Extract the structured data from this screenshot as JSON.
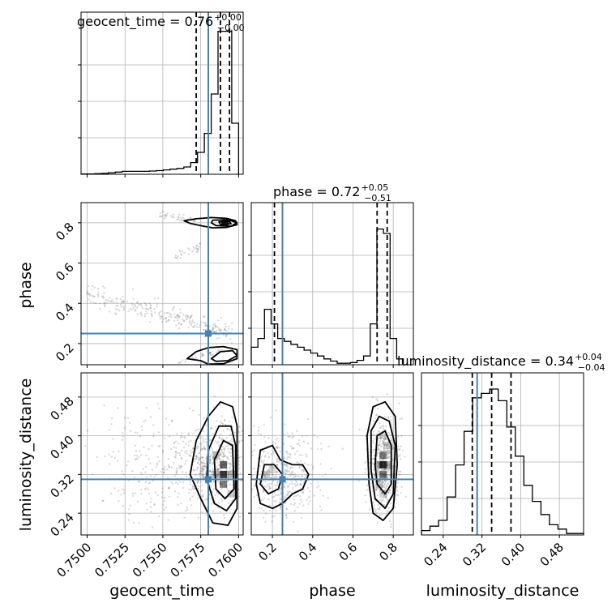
{
  "chart_data": {
    "type": "corner",
    "colors": {
      "truth": "#4682b4",
      "line": "#000000",
      "grid": "#b0b0b0",
      "scatter": "#555555"
    },
    "truths": {
      "geocent_time": 0.758,
      "phase": 0.25,
      "luminosity_distance": 0.31
    },
    "params": [
      {
        "key": "geocent_time",
        "label": "geocent_time",
        "title_prefix": "geocent_time = 0.76",
        "plus": "+0.00",
        "minus": "−0.00",
        "range": [
          0.7496,
          0.7603
        ],
        "ticks": [
          0.75,
          0.7525,
          0.755,
          0.7575,
          0.76
        ],
        "tick_labels": [
          "0.7500",
          "0.7525",
          "0.7550",
          "0.7575",
          "0.7600"
        ],
        "quantiles": [
          0.7572,
          0.7588,
          0.7594
        ]
      },
      {
        "key": "phase",
        "label": "phase",
        "title_prefix": "phase = 0.72",
        "plus": "+0.05",
        "minus": "−0.51",
        "range": [
          0.095,
          0.9
        ],
        "ticks": [
          0.2,
          0.4,
          0.6,
          0.8
        ],
        "tick_labels": [
          "0.2",
          "0.4",
          "0.6",
          "0.8"
        ],
        "quantiles": [
          0.21,
          0.72,
          0.77
        ]
      },
      {
        "key": "luminosity_distance",
        "label": "luminosity_distance",
        "title_prefix": "luminosity_distance = 0.34",
        "plus": "+0.04",
        "minus": "−0.04",
        "range": [
          0.195,
          0.53
        ],
        "ticks": [
          0.24,
          0.32,
          0.4,
          0.48
        ],
        "tick_labels": [
          "0.24",
          "0.32",
          "0.40",
          "0.48"
        ],
        "quantiles": [
          0.3,
          0.34,
          0.38
        ]
      }
    ],
    "hist": {
      "geocent_time": {
        "edges_start": 0.7496,
        "edges_end": 0.76,
        "density": [
          0.002,
          0.002,
          0.004,
          0.006,
          0.01,
          0.015,
          0.02,
          0.02,
          0.02,
          0.02,
          0.022,
          0.025,
          0.03,
          0.035,
          0.04,
          0.05,
          0.08,
          0.15,
          0.28,
          0.55,
          0.98,
          0.98,
          0.35
        ]
      },
      "phase": {
        "edges_start": 0.095,
        "edges_end": 0.85,
        "density": [
          0.12,
          0.18,
          0.38,
          0.28,
          0.18,
          0.16,
          0.14,
          0.12,
          0.1,
          0.08,
          0.06,
          0.04,
          0.025,
          0.01,
          0.01,
          0.015,
          0.03,
          0.06,
          0.28,
          0.93,
          0.9,
          0.18,
          0.04
        ]
      },
      "luminosity_distance": {
        "edges_start": 0.195,
        "edges_end": 0.53,
        "density": [
          0.03,
          0.06,
          0.1,
          0.26,
          0.48,
          0.71,
          0.94,
          0.97,
          1.0,
          0.92,
          0.74,
          0.54,
          0.34,
          0.23,
          0.14,
          0.07,
          0.04,
          0.01,
          0.01
        ]
      }
    },
    "hist_ylim": [
      0,
      1.0
    ],
    "contours": {
      "phase_vs_geocent_time": [
        {
          "level": "outer",
          "points": [
            [
              0.7564,
              0.81
            ],
            [
              0.7572,
              0.82
            ],
            [
              0.7582,
              0.826
            ],
            [
              0.7592,
              0.822
            ],
            [
              0.7598,
              0.81
            ],
            [
              0.7599,
              0.79
            ],
            [
              0.7592,
              0.777
            ],
            [
              0.7583,
              0.775
            ],
            [
              0.7576,
              0.784
            ],
            [
              0.7568,
              0.797
            ]
          ]
        },
        {
          "level": "mid",
          "points": [
            [
              0.7583,
              0.813
            ],
            [
              0.7593,
              0.815
            ],
            [
              0.7599,
              0.8
            ],
            [
              0.7595,
              0.783
            ],
            [
              0.7585,
              0.786
            ],
            [
              0.7582,
              0.8
            ]
          ]
        },
        {
          "level": "inner",
          "points": [
            [
              0.7587,
              0.805
            ],
            [
              0.7594,
              0.806
            ],
            [
              0.7595,
              0.795
            ],
            [
              0.7588,
              0.792
            ]
          ]
        },
        {
          "level": "outer",
          "points": [
            [
              0.7566,
              0.125
            ],
            [
              0.7572,
              0.16
            ],
            [
              0.758,
              0.18
            ],
            [
              0.759,
              0.185
            ],
            [
              0.7599,
              0.17
            ],
            [
              0.7599,
              0.125
            ],
            [
              0.759,
              0.1
            ],
            [
              0.758,
              0.098
            ],
            [
              0.7575,
              0.115
            ]
          ]
        },
        {
          "level": "mid",
          "points": [
            [
              0.7582,
              0.125
            ],
            [
              0.7588,
              0.16
            ],
            [
              0.7596,
              0.165
            ],
            [
              0.7599,
              0.14
            ],
            [
              0.7593,
              0.115
            ],
            [
              0.7585,
              0.112
            ]
          ]
        }
      ],
      "ld_vs_geocent_time": [
        {
          "level": "outer",
          "points": [
            [
              0.7572,
              0.39
            ],
            [
              0.758,
              0.44
            ],
            [
              0.7588,
              0.47
            ],
            [
              0.7596,
              0.46
            ],
            [
              0.7599,
              0.42
            ],
            [
              0.7599,
              0.25
            ],
            [
              0.7593,
              0.215
            ],
            [
              0.7583,
              0.22
            ],
            [
              0.7575,
              0.27
            ],
            [
              0.7568,
              0.32
            ]
          ]
        },
        {
          "level": "mid",
          "points": [
            [
              0.758,
              0.37
            ],
            [
              0.7587,
              0.42
            ],
            [
              0.7595,
              0.42
            ],
            [
              0.7598,
              0.38
            ],
            [
              0.7598,
              0.27
            ],
            [
              0.7592,
              0.245
            ],
            [
              0.7584,
              0.26
            ],
            [
              0.7579,
              0.31
            ]
          ]
        },
        {
          "level": "inner",
          "points": [
            [
              0.7584,
              0.35
            ],
            [
              0.759,
              0.39
            ],
            [
              0.7596,
              0.38
            ],
            [
              0.7597,
              0.29
            ],
            [
              0.7591,
              0.27
            ],
            [
              0.7585,
              0.29
            ]
          ]
        }
      ],
      "ld_vs_phase": [
        {
          "level": "outer",
          "points": [
            [
              0.68,
              0.3
            ],
            [
              0.67,
              0.4
            ],
            [
              0.7,
              0.46
            ],
            [
              0.76,
              0.47
            ],
            [
              0.81,
              0.44
            ],
            [
              0.82,
              0.34
            ],
            [
              0.8,
              0.25
            ],
            [
              0.75,
              0.225
            ],
            [
              0.7,
              0.24
            ]
          ]
        },
        {
          "level": "mid",
          "points": [
            [
              0.69,
              0.33
            ],
            [
              0.69,
              0.41
            ],
            [
              0.73,
              0.44
            ],
            [
              0.78,
              0.43
            ],
            [
              0.81,
              0.38
            ],
            [
              0.8,
              0.28
            ],
            [
              0.76,
              0.25
            ],
            [
              0.71,
              0.27
            ]
          ]
        },
        {
          "level": "inner",
          "points": [
            [
              0.71,
              0.34
            ],
            [
              0.72,
              0.4
            ],
            [
              0.76,
              0.41
            ],
            [
              0.79,
              0.38
            ],
            [
              0.79,
              0.3
            ],
            [
              0.76,
              0.28
            ],
            [
              0.72,
              0.3
            ]
          ]
        },
        {
          "level": "outer",
          "points": [
            [
              0.12,
              0.3
            ],
            [
              0.14,
              0.37
            ],
            [
              0.2,
              0.38
            ],
            [
              0.24,
              0.35
            ],
            [
              0.3,
              0.34
            ],
            [
              0.35,
              0.34
            ],
            [
              0.38,
              0.32
            ],
            [
              0.35,
              0.29
            ],
            [
              0.3,
              0.28
            ],
            [
              0.25,
              0.26
            ],
            [
              0.2,
              0.25
            ],
            [
              0.14,
              0.26
            ]
          ]
        },
        {
          "level": "mid",
          "points": [
            [
              0.14,
              0.3
            ],
            [
              0.16,
              0.34
            ],
            [
              0.21,
              0.34
            ],
            [
              0.25,
              0.32
            ],
            [
              0.23,
              0.29
            ],
            [
              0.18,
              0.28
            ]
          ]
        }
      ]
    },
    "density_cells": {
      "phase_vs_geocent_time": [
        [
          0.7591,
          0.8,
          1
        ]
      ],
      "ld_vs_geocent_time": [
        [
          0.759,
          0.32,
          0.9
        ],
        [
          0.759,
          0.34,
          0.7
        ],
        [
          0.759,
          0.3,
          0.6
        ],
        [
          0.7585,
          0.32,
          0.35
        ],
        [
          0.7595,
          0.32,
          0.35
        ],
        [
          0.7585,
          0.36,
          0.25
        ],
        [
          0.7595,
          0.28,
          0.25
        ]
      ],
      "ld_vs_phase": [
        [
          0.75,
          0.34,
          0.9
        ],
        [
          0.75,
          0.32,
          0.6
        ],
        [
          0.75,
          0.36,
          0.55
        ],
        [
          0.73,
          0.34,
          0.4
        ],
        [
          0.77,
          0.34,
          0.35
        ],
        [
          0.73,
          0.3,
          0.25
        ],
        [
          0.77,
          0.38,
          0.25
        ],
        [
          0.75,
          0.4,
          0.2
        ],
        [
          0.75,
          0.28,
          0.2
        ],
        [
          0.17,
          0.32,
          0.25
        ],
        [
          0.2,
          0.33,
          0.15
        ]
      ]
    },
    "scatter_regions": {
      "phase_vs_geocent_time": [
        {
          "kind": "band",
          "x": [
            0.75,
            0.7596
          ],
          "y": [
            0.45,
            0.25
          ],
          "spread": 0.025,
          "count": 260
        },
        {
          "kind": "band",
          "x": [
            0.7548,
            0.7572
          ],
          "y": [
            0.84,
            0.81
          ],
          "spread": 0.008,
          "count": 40
        },
        {
          "kind": "band",
          "x": [
            0.7558,
            0.7575
          ],
          "y": [
            0.64,
            0.68
          ],
          "spread": 0.01,
          "count": 30
        },
        {
          "kind": "band",
          "x": [
            0.756,
            0.759
          ],
          "y": [
            0.1,
            0.17
          ],
          "spread": 0.01,
          "count": 40
        }
      ],
      "ld_vs_geocent_time": [
        {
          "kind": "cloud",
          "cx": 0.7583,
          "cy": 0.34,
          "sx": 0.0011,
          "sy": 0.045,
          "count": 520
        },
        {
          "kind": "cloud",
          "cx": 0.7548,
          "cy": 0.33,
          "sx": 0.0022,
          "sy": 0.06,
          "count": 260
        }
      ],
      "ld_vs_phase": [
        {
          "kind": "cloud",
          "cx": 0.75,
          "cy": 0.34,
          "sx": 0.04,
          "sy": 0.05,
          "count": 520
        },
        {
          "kind": "cloud",
          "cx": 0.25,
          "cy": 0.32,
          "sx": 0.09,
          "sy": 0.045,
          "count": 420
        }
      ]
    }
  }
}
